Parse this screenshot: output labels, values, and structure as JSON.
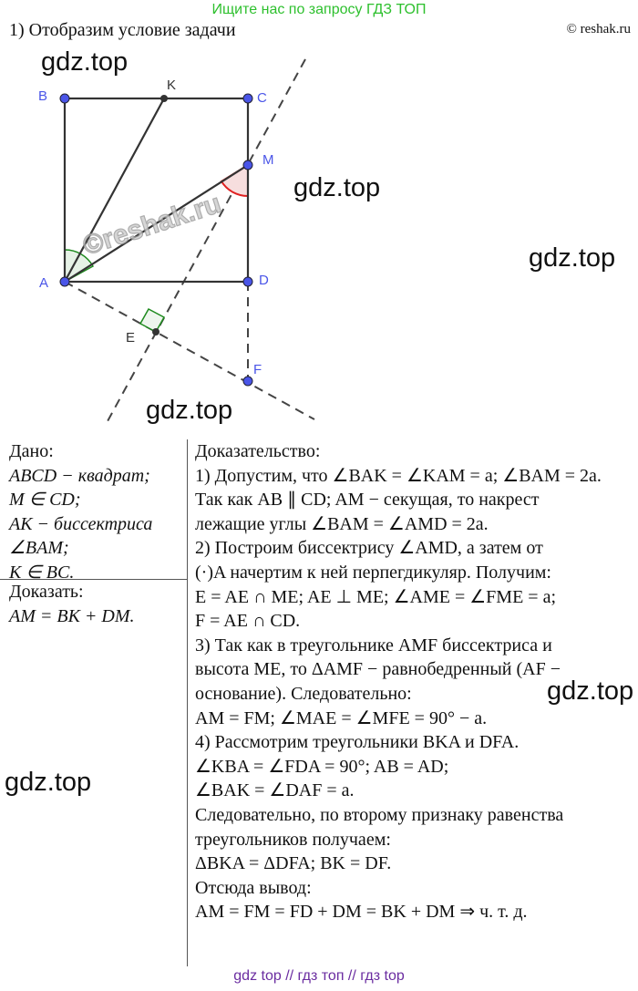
{
  "banner": "Ищите нас по запросу ГДЗ ТОП",
  "title": "1) Отобразим условие задачи",
  "copyright": "© reshak.ru",
  "watermarks": [
    "gdz.top",
    "gdz.top",
    "gdz.top",
    "gdz.top",
    "gdz.top",
    "gdz.top"
  ],
  "stamp": "©reshak.ru",
  "figure": {
    "points": {
      "A": "A",
      "B": "B",
      "C": "C",
      "D": "D",
      "K": "K",
      "M": "M",
      "E": "E",
      "F": "F"
    },
    "colors": {
      "point": "#4a55e8",
      "angle_bisector": "#1e8a1e",
      "angle_M": "#e02020",
      "right_angle": "#1e8a1e"
    }
  },
  "given": {
    "heading": "Дано:",
    "lines": [
      "ABCD − квадрат;",
      "M ∈ CD;",
      "AK − биссектриса",
      "∠BAM;",
      "K ∈ BC."
    ]
  },
  "prove": {
    "heading": "Доказать:",
    "lines": [
      "AM = BK + DM."
    ]
  },
  "proof": {
    "heading": "Доказательство:",
    "lines": [
      "1) Допустим, что ∠BAK = ∠KAM = a;  ∠BAM = 2a.",
      "Так как AB ∥ CD;  AM − секущая, то накрест",
      "лежащие углы ∠BAM = ∠AMD = 2a.",
      "2) Построим биссектрису ∠AMD, а затем от",
      "(·)A начертим к ней перпегдикуляр. Получим:",
      "E = AE ∩ ME;  AE ⊥ ME;  ∠AME = ∠FME = a;",
      "F = AE ∩ CD.",
      "3) Так как в треугольнике AMF биссектриса и",
      "высота ME, то ΔAMF − равнобедренный (AF −",
      "основание). Следовательно:",
      "AM = FM;  ∠MAE = ∠MFE = 90° − a.",
      "4) Рассмотрим треугольники BKA и DFA.",
      "∠KBA = ∠FDA = 90°;  AB = AD;",
      "∠BAK = ∠DAF = a.",
      "Следовательно, по второму признаку равенства",
      "треугольников получаем:",
      "ΔBKA = ΔDFA;   BK = DF.",
      "Отсюда  вывод:",
      "AM = FM = FD + DM = BK + DM ⇒ ч. т. д."
    ]
  },
  "footer": "gdz top  //  гдз топ  //  гдз top"
}
